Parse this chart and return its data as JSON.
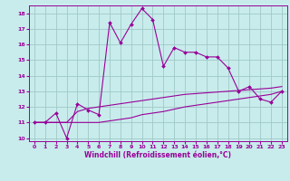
{
  "xlabel": "Windchill (Refroidissement éolien,°C)",
  "bg_color": "#c8ecec",
  "grid_color": "#a0c8c8",
  "line_color": "#990099",
  "x_jagged": [
    0,
    1,
    2,
    3,
    4,
    5,
    6,
    7,
    8,
    9,
    10,
    11,
    12,
    13,
    14,
    15,
    16,
    17,
    18,
    19,
    20,
    21,
    22,
    23
  ],
  "y_jagged": [
    11,
    11,
    11.6,
    10.0,
    12.2,
    11.8,
    11.5,
    17.4,
    16.1,
    17.3,
    18.3,
    17.6,
    14.6,
    15.8,
    15.5,
    15.5,
    15.2,
    15.2,
    14.5,
    13.0,
    13.3,
    12.5,
    12.3,
    13.0
  ],
  "x_upper": [
    0,
    1,
    2,
    3,
    4,
    5,
    6,
    7,
    8,
    9,
    10,
    11,
    12,
    13,
    14,
    15,
    16,
    17,
    18,
    19,
    20,
    21,
    22,
    23
  ],
  "y_upper": [
    11,
    11,
    11,
    11,
    11.7,
    11.9,
    12.0,
    12.1,
    12.2,
    12.3,
    12.4,
    12.5,
    12.6,
    12.7,
    12.8,
    12.85,
    12.9,
    12.95,
    13.0,
    13.05,
    13.1,
    13.15,
    13.2,
    13.3
  ],
  "x_lower": [
    0,
    1,
    2,
    3,
    4,
    5,
    6,
    7,
    8,
    9,
    10,
    11,
    12,
    13,
    14,
    15,
    16,
    17,
    18,
    19,
    20,
    21,
    22,
    23
  ],
  "y_lower": [
    11,
    11,
    11,
    11,
    11,
    11,
    11,
    11.1,
    11.2,
    11.3,
    11.5,
    11.6,
    11.7,
    11.85,
    12.0,
    12.1,
    12.2,
    12.3,
    12.4,
    12.5,
    12.6,
    12.7,
    12.8,
    13.0
  ],
  "ylim": [
    9.8,
    18.5
  ],
  "xlim": [
    -0.5,
    23.5
  ],
  "yticks": [
    10,
    11,
    12,
    13,
    14,
    15,
    16,
    17,
    18
  ],
  "xticks": [
    0,
    1,
    2,
    3,
    4,
    5,
    6,
    7,
    8,
    9,
    10,
    11,
    12,
    13,
    14,
    15,
    16,
    17,
    18,
    19,
    20,
    21,
    22,
    23
  ],
  "tick_fontsize": 4.5,
  "xlabel_fontsize": 5.5,
  "lw": 0.8,
  "marker_size": 2.0
}
